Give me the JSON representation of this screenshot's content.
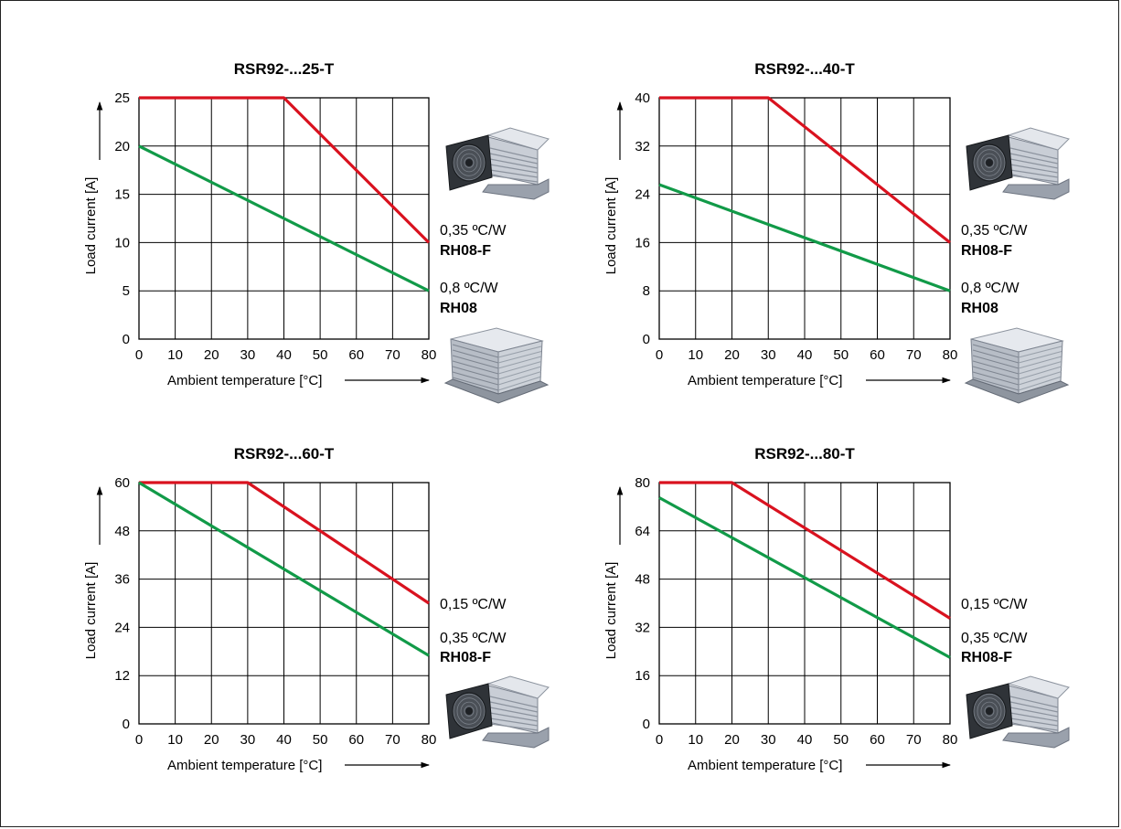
{
  "colors": {
    "red_series": "#d9121f",
    "green_series": "#119a48",
    "grid": "#000000"
  },
  "chart_data": [
    {
      "type": "line",
      "title": "RSR92-...25-T",
      "xlabel": "Ambient temperature [°C]",
      "ylabel": "Load current [A]",
      "xlim": [
        0,
        80
      ],
      "ylim": [
        0,
        25
      ],
      "x_ticks": [
        "0",
        "10",
        "20",
        "30",
        "40",
        "50",
        "60",
        "70",
        "80"
      ],
      "y_ticks": [
        "0",
        "5",
        "10",
        "15",
        "20",
        "25"
      ],
      "y_tick_values": [
        0,
        5,
        10,
        15,
        20,
        25
      ],
      "grid": true,
      "series": [
        {
          "name": "",
          "color": "red",
          "x": [
            0,
            40,
            80
          ],
          "y": [
            25,
            25,
            10
          ]
        },
        {
          "name": "",
          "color": "green",
          "x": [
            0,
            80
          ],
          "y": [
            20,
            5
          ]
        }
      ],
      "annotations": [
        {
          "value": "0,35 ºC/W",
          "bold": false
        },
        {
          "value": "RH08-F",
          "bold": true
        },
        {
          "value": "0,8 ºC/W",
          "bold": false
        },
        {
          "value": "RH08",
          "bold": true
        }
      ],
      "images": [
        "fan-heatsink-image",
        "heatsink-image"
      ]
    },
    {
      "type": "line",
      "title": "RSR92-...40-T",
      "xlabel": "Ambient temperature [°C]",
      "ylabel": "Load current [A]",
      "xlim": [
        0,
        80
      ],
      "ylim": [
        0,
        40
      ],
      "x_ticks": [
        "0",
        "10",
        "20",
        "30",
        "40",
        "50",
        "60",
        "70",
        "80"
      ],
      "y_ticks": [
        "0",
        "8",
        "16",
        "24",
        "32",
        "40"
      ],
      "y_tick_values": [
        0,
        8,
        16,
        24,
        32,
        40
      ],
      "grid": true,
      "series": [
        {
          "name": "",
          "color": "red",
          "x": [
            0,
            30,
            80
          ],
          "y": [
            40,
            40,
            16
          ]
        },
        {
          "name": "",
          "color": "green",
          "x": [
            0,
            80
          ],
          "y": [
            25.6,
            8
          ]
        }
      ],
      "annotations": [
        {
          "value": "0,35 ºC/W",
          "bold": false
        },
        {
          "value": "RH08-F",
          "bold": true
        },
        {
          "value": "0,8 ºC/W",
          "bold": false
        },
        {
          "value": "RH08",
          "bold": true
        }
      ],
      "images": [
        "fan-heatsink-image",
        "heatsink-image"
      ]
    },
    {
      "type": "line",
      "title": "RSR92-...60-T",
      "xlabel": "Ambient temperature [°C]",
      "ylabel": "Load current [A]",
      "xlim": [
        0,
        80
      ],
      "ylim": [
        0,
        60
      ],
      "x_ticks": [
        "0",
        "10",
        "20",
        "30",
        "40",
        "50",
        "60",
        "70",
        "80"
      ],
      "y_ticks": [
        "0",
        "12",
        "24",
        "36",
        "48",
        "60"
      ],
      "y_tick_values": [
        0,
        12,
        24,
        36,
        48,
        60
      ],
      "grid": true,
      "series": [
        {
          "name": "",
          "color": "red",
          "x": [
            0,
            30,
            80
          ],
          "y": [
            60,
            60,
            30
          ]
        },
        {
          "name": "",
          "color": "green",
          "x": [
            0,
            80
          ],
          "y": [
            60,
            17
          ]
        }
      ],
      "annotations": [
        {
          "value": "0,15 ºC/W",
          "bold": false
        },
        {
          "value": "0,35 ºC/W",
          "bold": false
        },
        {
          "value": "RH08-F",
          "bold": true
        }
      ],
      "images": [
        "fan-heatsink-image"
      ]
    },
    {
      "type": "line",
      "title": "RSR92-...80-T",
      "xlabel": "Ambient temperature [°C]",
      "ylabel": "Load current [A]",
      "xlim": [
        0,
        80
      ],
      "ylim": [
        0,
        80
      ],
      "x_ticks": [
        "0",
        "10",
        "20",
        "30",
        "40",
        "50",
        "60",
        "70",
        "80"
      ],
      "y_ticks": [
        "0",
        "16",
        "32",
        "48",
        "64",
        "80"
      ],
      "y_tick_values": [
        0,
        16,
        32,
        48,
        64,
        80
      ],
      "grid": true,
      "series": [
        {
          "name": "",
          "color": "red",
          "x": [
            0,
            20,
            80
          ],
          "y": [
            80,
            80,
            35
          ]
        },
        {
          "name": "",
          "color": "green",
          "x": [
            0,
            80
          ],
          "y": [
            75,
            22
          ]
        }
      ],
      "annotations": [
        {
          "value": "0,15 ºC/W",
          "bold": false
        },
        {
          "value": "0,35 ºC/W",
          "bold": false
        },
        {
          "value": "RH08-F",
          "bold": true
        }
      ],
      "images": [
        "fan-heatsink-image"
      ]
    }
  ]
}
